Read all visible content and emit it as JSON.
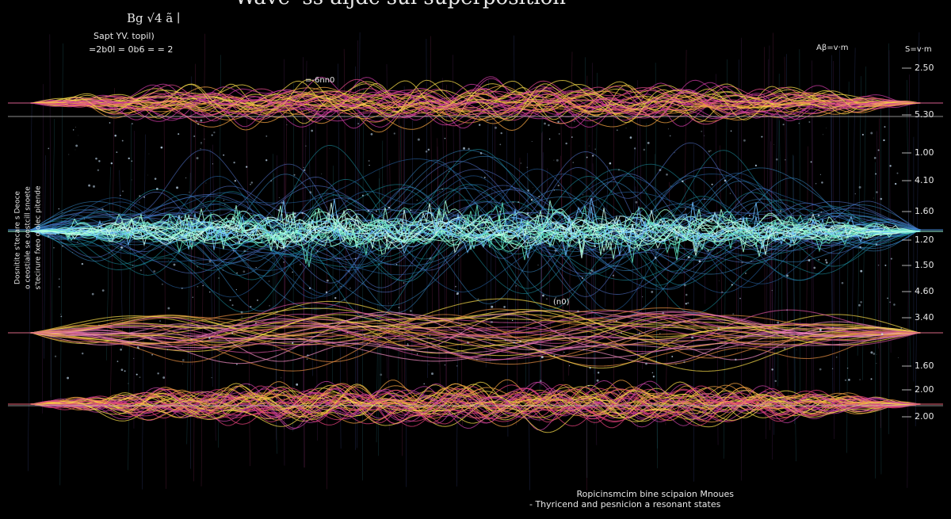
{
  "header": {
    "title": "Wave 'ss aijdc sui superposition",
    "formula": "Bg √4 ã ∣",
    "subtitle": "Sapt YV. topil)",
    "equation": "=2b0l = 0b6 = = 2"
  },
  "side_text": [
    "Dosnitite s'tecare s Deoce",
    "o ceostiale se oostcill snoete",
    "s'tecirure fxeo o olec pitende"
  ],
  "annotations": [
    "=-6nn0",
    "(n0)",
    "Aβ=v·m",
    "S=v·m"
  ],
  "scale_labels": [
    "2.50",
    "5.30",
    "1.00",
    "4.10",
    "1.60",
    "1.20",
    "1.50",
    "4.60",
    "3.40",
    "1.60",
    "2.00",
    "2.00"
  ],
  "footer": {
    "line1": "Ropicinsmcim bine scipaion Mnoues",
    "line2": "- Thyricend and pesnicion a resonant states"
  }
}
